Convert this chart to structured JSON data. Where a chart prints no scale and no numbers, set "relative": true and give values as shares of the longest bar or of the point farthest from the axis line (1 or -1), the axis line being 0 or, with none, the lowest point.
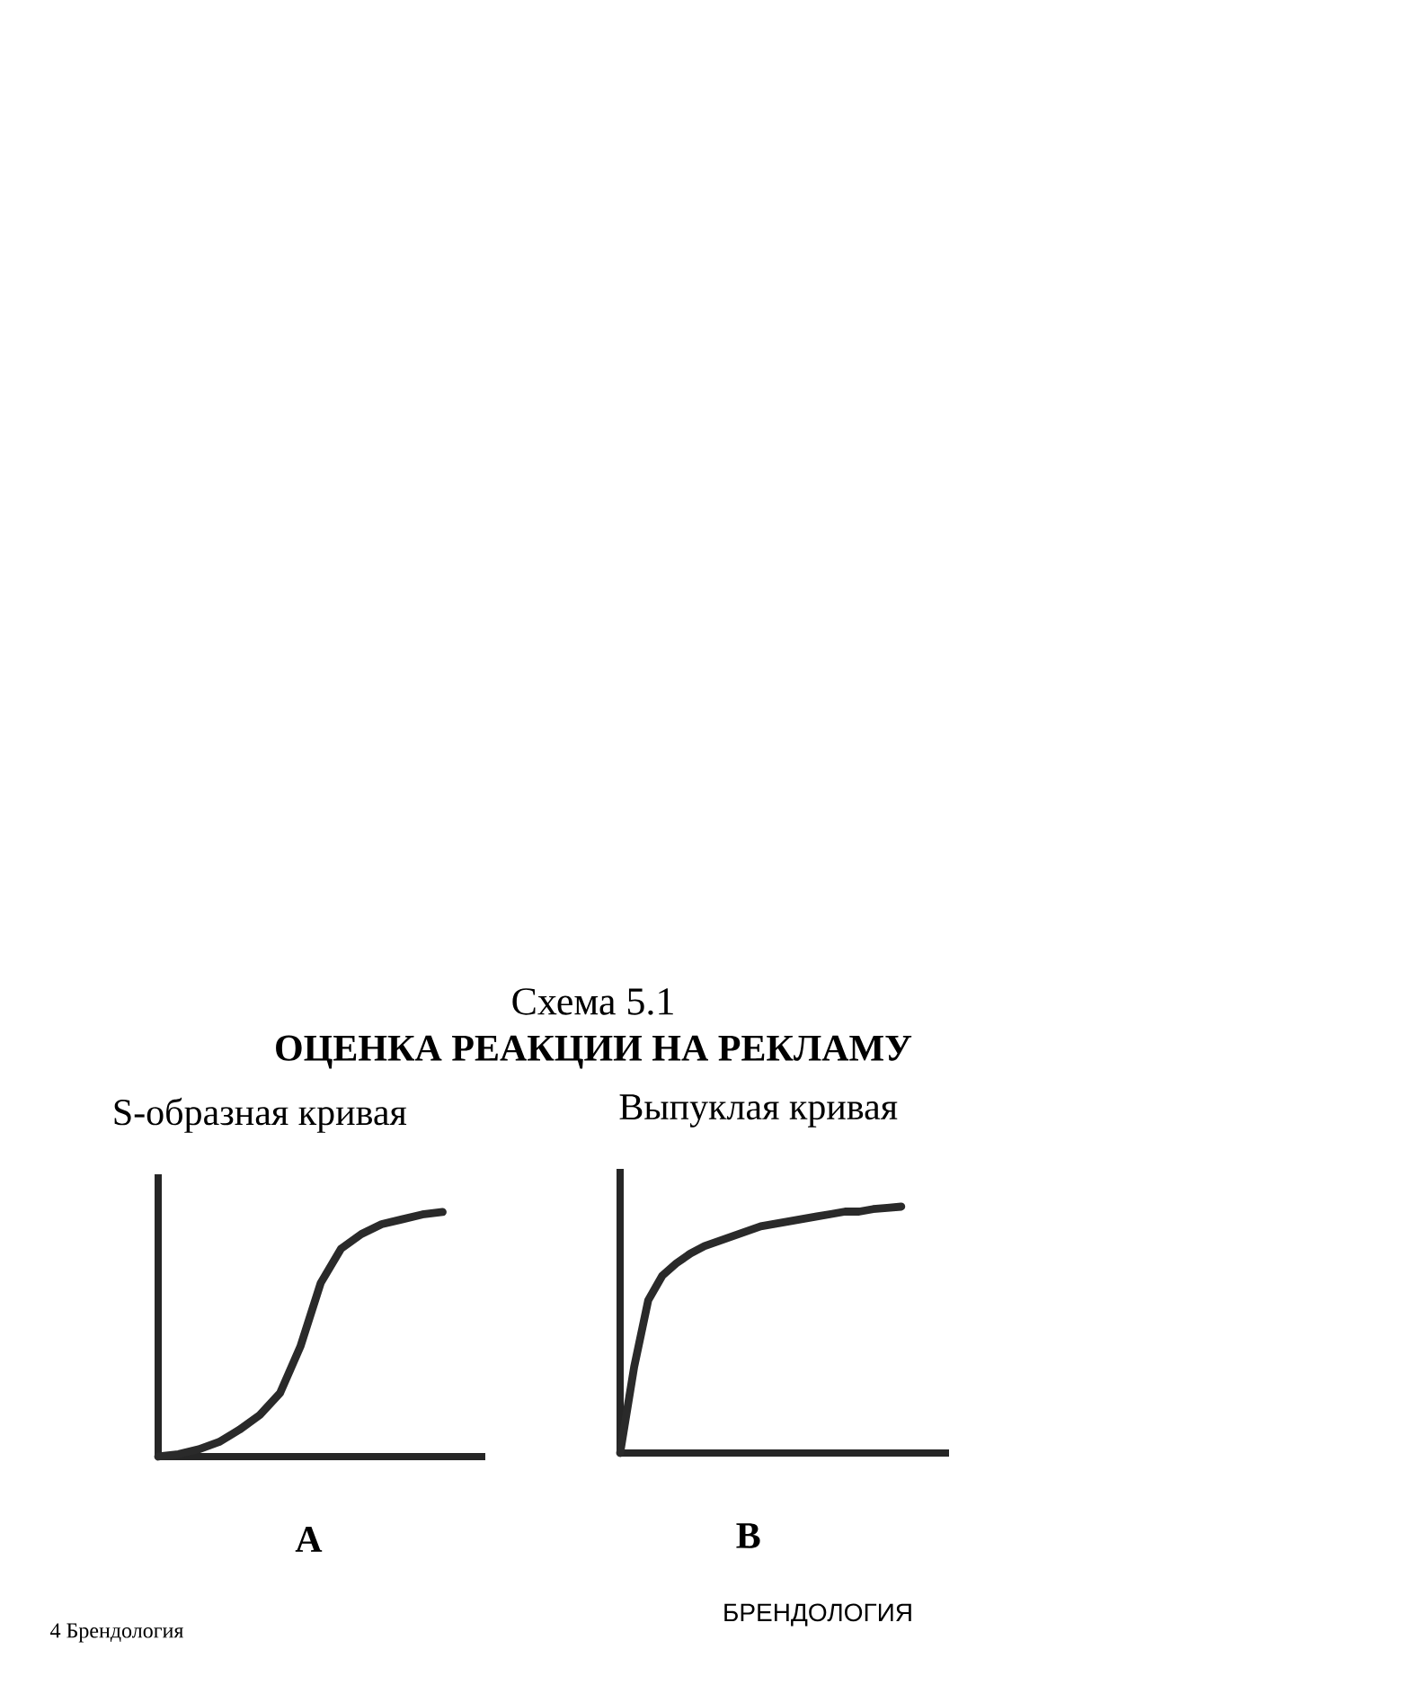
{
  "chart_data": [
    {
      "type": "line",
      "title": "S-образная кривая",
      "xlabel": "A",
      "relative": true,
      "categories": [
        null,
        null,
        null,
        null,
        null,
        null,
        null,
        null,
        null,
        null,
        null,
        null,
        null,
        null,
        null
      ],
      "series": [
        {
          "color": "#2a2a2a",
          "values": [
            0,
            0.01,
            0.03,
            0.06,
            0.11,
            0.17,
            0.26,
            0.45,
            0.71,
            0.85,
            0.91,
            0.95,
            0.97,
            0.99,
            1
          ]
        }
      ],
      "annotations": [
        "Схема 5.1",
        "ОЦЕНКА РЕАКЦИИ НА РЕКЛАМУ",
        "4 Брендология",
        "БРЕНДОЛОГИЯ"
      ]
    },
    {
      "type": "line",
      "title": "Выпуклая кривая",
      "xlabel": "B",
      "relative": true,
      "categories": [
        null,
        null,
        null,
        null,
        null,
        null,
        null,
        null,
        null,
        null,
        null,
        null,
        null,
        null,
        null,
        null,
        null,
        null,
        null,
        null,
        null
      ],
      "series": [
        {
          "color": "#2a2a2a",
          "values": [
            0,
            0.35,
            0.62,
            0.72,
            0.77,
            0.81,
            0.84,
            0.86,
            0.88,
            0.9,
            0.92,
            0.93,
            0.94,
            0.95,
            0.96,
            0.97,
            0.98,
            0.98,
            0.99,
            0.995,
            1
          ]
        }
      ]
    }
  ]
}
